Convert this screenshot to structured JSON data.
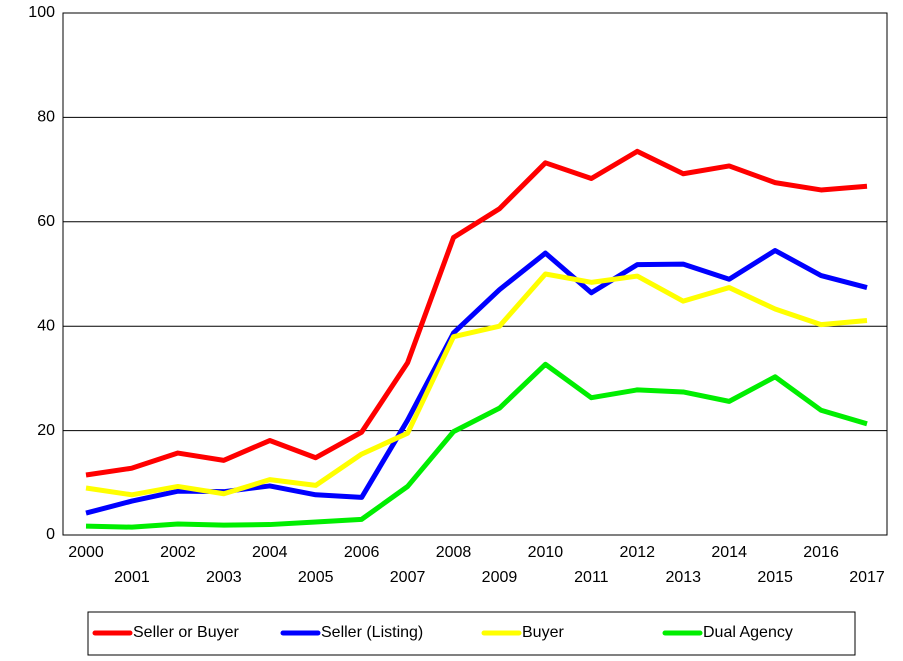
{
  "chart_data": {
    "type": "line",
    "categories": [
      "2000",
      "2001",
      "2002",
      "2003",
      "2004",
      "2005",
      "2006",
      "2007",
      "2008",
      "2009",
      "2010",
      "2011",
      "2012",
      "2013",
      "2014",
      "2015",
      "2016",
      "2017"
    ],
    "series": [
      {
        "name": "Seller or Buyer",
        "color": "#ff0000",
        "values": [
          11.5,
          12.8,
          15.7,
          14.3,
          18.1,
          14.8,
          19.7,
          33,
          57,
          62.5,
          71.3,
          68.3,
          73.5,
          69.2,
          70.7,
          67.5,
          66.1,
          66.8
        ]
      },
      {
        "name": "Seller (Listing)",
        "color": "#0000ff",
        "values": [
          4.2,
          6.5,
          8.4,
          8.3,
          9.4,
          7.7,
          7.2,
          22,
          38.7,
          47,
          54,
          46.4,
          51.8,
          51.9,
          49,
          54.5,
          49.7,
          47.4
        ]
      },
      {
        "name": "Buyer",
        "color": "#ffff00",
        "values": [
          9,
          7.7,
          9.3,
          7.9,
          10.6,
          9.5,
          15.5,
          19.5,
          38,
          40,
          50,
          48.4,
          49.6,
          44.8,
          47.4,
          43.3,
          40.3,
          41.1
        ]
      },
      {
        "name": "Dual Agency",
        "color": "#00ee00",
        "values": [
          1.7,
          1.5,
          2.1,
          1.9,
          2,
          2.5,
          3,
          9.3,
          19.8,
          24.3,
          32.7,
          26.3,
          27.8,
          27.4,
          25.6,
          30.3,
          23.9,
          21.3
        ]
      }
    ],
    "ylim": [
      0,
      100
    ],
    "yticks": [
      0,
      20,
      40,
      60,
      80,
      100
    ],
    "grid": true,
    "legend": "bottom"
  }
}
